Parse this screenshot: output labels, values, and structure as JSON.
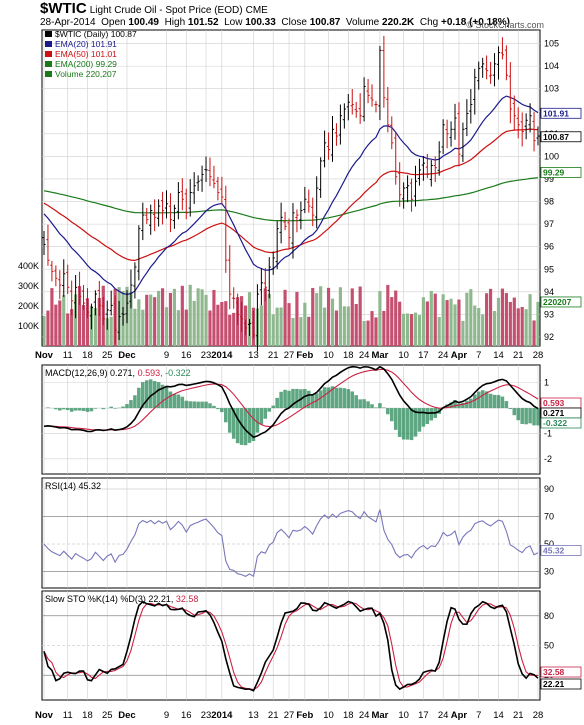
{
  "header": {
    "symbol": "$WTIC",
    "instrument": "Light Crude Oil - Spot Price (EOD)",
    "exchange": "CME",
    "date": "28-Apr-2014",
    "open_label": "Open",
    "open": "100.49",
    "high_label": "High",
    "high": "101.52",
    "low_label": "Low",
    "low": "100.33",
    "close_label": "Close",
    "close": "100.87",
    "volume_label": "Volume",
    "volume": "220.2K",
    "chg_label": "Chg",
    "chg": "+0.18 (+0.18%)",
    "watermark": "© StockCharts.com"
  },
  "colors": {
    "up": "#000000",
    "down": "#cc1111",
    "ema20": "#1a1a8c",
    "ema50": "#cc1111",
    "ema200": "#1a7a1a",
    "vol_up": "#8fb88f",
    "vol_down": "#c44f6e",
    "macd_line": "#000000",
    "macd_signal": "#cc2244",
    "macd_hist": "#2a8a5a",
    "rsi": "#7777bb",
    "sto_k": "#000000",
    "sto_d": "#cc2244",
    "grid": "#cfcfcf",
    "frame": "#000000"
  },
  "chart_data": [
    {
      "type": "candlestick",
      "name": "price",
      "legend": [
        {
          "text": "$WTIC (Daily) 100.87",
          "color": "#000000",
          "icon": "candle-icon"
        },
        {
          "text": "EMA(20) 101.91",
          "color": "#1a1a8c",
          "icon": "line-icon"
        },
        {
          "text": "EMA(50) 101.01",
          "color": "#cc1111",
          "icon": "line-icon"
        },
        {
          "text": "EMA(200) 99.29",
          "color": "#1a7a1a",
          "icon": "line-icon"
        },
        {
          "text": "Volume 220,207",
          "color": "#1a7a1a",
          "icon": "volume-icon"
        }
      ],
      "x_labels": [
        "Nov",
        "11",
        "18",
        "25",
        "Dec",
        "9",
        "16",
        "23",
        "2014",
        "13",
        "21",
        "27",
        "Feb",
        "10",
        "18",
        "24",
        "Mar",
        "10",
        "17",
        "24",
        "Apr",
        "7",
        "14",
        "21",
        "28"
      ],
      "x_label_index": [
        0,
        6,
        11,
        16,
        21,
        31,
        36,
        41,
        45,
        53,
        58,
        62,
        66,
        72,
        77,
        81,
        85,
        91,
        96,
        101,
        105,
        110,
        115,
        120,
        125
      ],
      "y_ticks": [
        92,
        93,
        94,
        95,
        96,
        97,
        98,
        99,
        100,
        101,
        102,
        103,
        104,
        105
      ],
      "ylim": [
        91.6,
        105.6
      ],
      "last_tags": [
        {
          "text": "101.91",
          "value": 101.91,
          "color": "#1a1a8c"
        },
        {
          "text": "100.87",
          "value": 100.87,
          "color": "#000000"
        },
        {
          "text": "99.29",
          "value": 99.29,
          "color": "#1a7a1a"
        }
      ],
      "volume_ticks": [
        {
          "text": "400K",
          "value": 400000
        },
        {
          "text": "300K",
          "value": 300000
        },
        {
          "text": "200K",
          "value": 200000
        },
        {
          "text": "100K",
          "value": 100000
        }
      ],
      "volume_max": 500000,
      "volume_tag": "220207",
      "close": [
        96.1,
        95.4,
        94.9,
        94.6,
        94.3,
        94.8,
        94.2,
        93.6,
        94.2,
        93.8,
        93.5,
        93.1,
        93.3,
        93.9,
        93.4,
        92.8,
        93.2,
        93.4,
        92.3,
        92.9,
        93.0,
        93.5,
        94.3,
        95.1,
        96.8,
        97.4,
        97.2,
        97.6,
        97.3,
        97.8,
        97.6,
        97.9,
        97.2,
        97.7,
        98.4,
        98.1,
        97.5,
        98.4,
        98.7,
        98.9,
        99.2,
        99.4,
        99.1,
        98.8,
        98.4,
        98.2,
        95.4,
        93.9,
        93.7,
        93.0,
        92.8,
        92.4,
        92.6,
        92.1,
        93.9,
        94.4,
        94.2,
        95.1,
        95.5,
        96.8,
        97.3,
        96.9,
        96.4,
        97.5,
        97.4,
        97.6,
        98.1,
        97.8,
        97.4,
        98.6,
        99.8,
        100.6,
        100.3,
        101.2,
        100.9,
        101.8,
        102.1,
        102.4,
        102.3,
        102.0,
        101.8,
        103.1,
        102.7,
        102.5,
        102.3,
        104.7,
        102.6,
        101.4,
        100.6,
        99.1,
        98.3,
        98.6,
        98.7,
        98.1,
        98.9,
        99.4,
        99.7,
        99.2,
        99.6,
        99.5,
        100.2,
        101.4,
        101.0,
        101.2,
        101.7,
        100.1,
        101.2,
        101.9,
        102.3,
        103.5,
        103.9,
        104.1,
        103.8,
        103.6,
        104.1,
        104.6,
        104.5,
        103.6,
        102.1,
        101.8,
        101.4,
        101.1,
        101.6,
        101.8,
        100.7,
        100.9
      ]
    },
    {
      "type": "line",
      "name": "MACD",
      "label": "MACD(12,26,9)",
      "values_text": {
        "macd": "0.271",
        "signal": "0.593",
        "hist": "-0.322"
      },
      "y_ticks": [
        1,
        0,
        -1,
        -2
      ],
      "ylim": [
        -2.6,
        1.7
      ],
      "last_tags": [
        {
          "text": "0.593",
          "value": 0.593,
          "color": "#cc2244"
        },
        {
          "text": "0.271",
          "value": 0.271,
          "color": "#000000"
        },
        {
          "text": "-0.322",
          "value": -0.322,
          "color": "#2a8a5a"
        }
      ]
    },
    {
      "type": "line",
      "name": "RSI",
      "label": "RSI(14)",
      "values_text": {
        "rsi": "45.32"
      },
      "y_ticks": [
        90,
        70,
        50,
        30
      ],
      "ylim": [
        18,
        98
      ],
      "last_tags": [
        {
          "text": "45.32",
          "value": 45.32,
          "color": "#7777bb"
        }
      ]
    },
    {
      "type": "line",
      "name": "Slow STO",
      "label": "Slow STO %K(14) %D(3)",
      "values_text": {
        "k": "22.21",
        "d": "32.58"
      },
      "y_ticks": [
        80,
        50,
        20
      ],
      "ylim": [
        -5,
        105
      ],
      "last_tags": [
        {
          "text": "32.58",
          "value": 32.58,
          "color": "#cc2244"
        },
        {
          "text": "22.21",
          "value": 22.21,
          "color": "#000000"
        }
      ]
    }
  ]
}
